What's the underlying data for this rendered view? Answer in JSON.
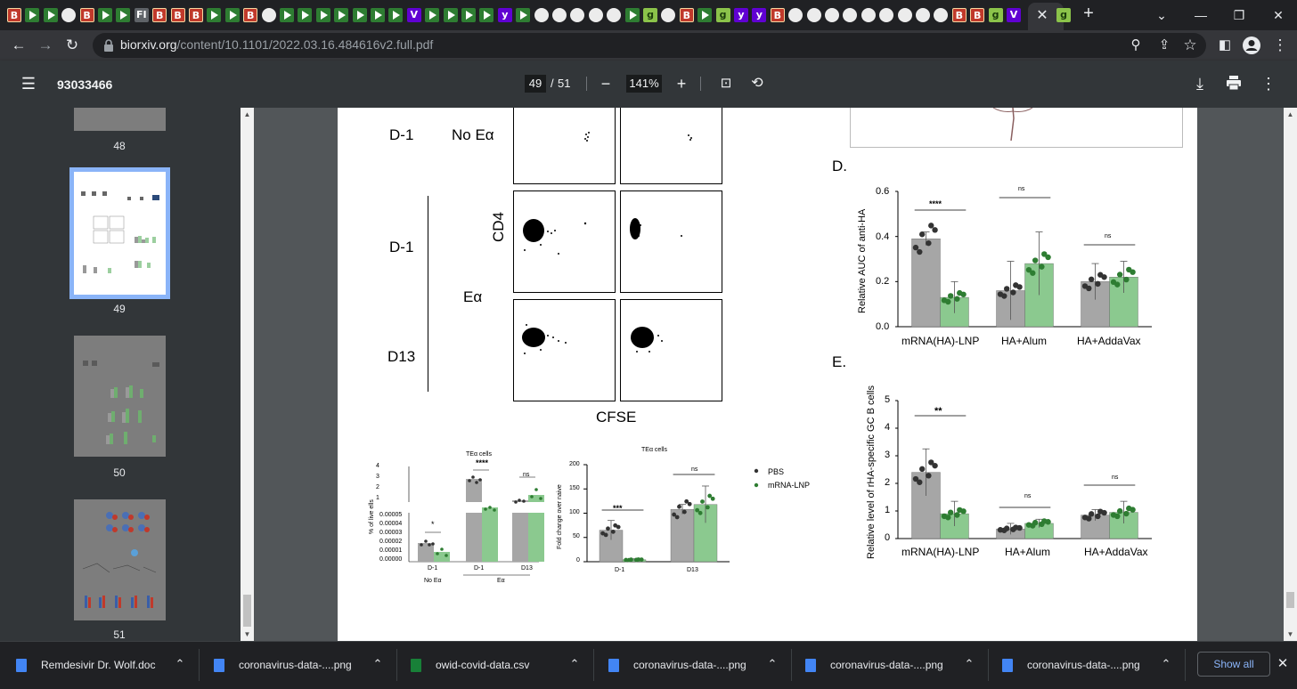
{
  "browser": {
    "url_host": "biorxiv.org",
    "url_path": "/content/10.1101/2022.03.16.484616v2.full.pdf",
    "tab_strip_glyphs": [
      "B",
      "D",
      "D",
      "C",
      "B",
      "D",
      "D",
      "FI",
      "B",
      "B",
      "B",
      "D",
      "D",
      "B",
      "C",
      "D",
      "D",
      "D",
      "D",
      "D",
      "D",
      "D",
      "V",
      "D",
      "D",
      "D",
      "D",
      "y",
      "D",
      "C",
      "C",
      "C",
      "C",
      "C",
      "D",
      "g",
      "C",
      "B",
      "D",
      "g",
      "y",
      "y",
      "B",
      "C",
      "C",
      "C",
      "C",
      "C",
      "C",
      "C",
      "C",
      "C",
      "B",
      "B",
      "g",
      "V"
    ],
    "tab_active_glyph": "g"
  },
  "pdf_viewer": {
    "title": "93033466",
    "current_page": "49",
    "page_separator": "/",
    "total_pages": "51",
    "zoom": "141%"
  },
  "sidebar": {
    "thumbs": [
      {
        "label": "48"
      },
      {
        "label": "49",
        "selected": true
      },
      {
        "label": "50"
      },
      {
        "label": "51"
      }
    ]
  },
  "figure": {
    "flow": {
      "row_labels": [
        "D-1",
        "D-1",
        "D13"
      ],
      "cond_labels": [
        "No Eα",
        "Eα"
      ],
      "y_axis": "CD4",
      "x_axis": "CFSE"
    },
    "chart_small_left": {
      "title": "TEα  cells",
      "ylabel": "% of live ells",
      "yticks_top": [
        "4",
        "3",
        "2",
        "1"
      ],
      "yticks_bottom": [
        "0.00005",
        "0.00004",
        "0.00003",
        "0.00002",
        "0.00001",
        "0.00000"
      ],
      "categories": [
        "D-1",
        "D-1",
        "D13"
      ],
      "sublabels": [
        "No Eα",
        "Eα"
      ],
      "sig": [
        "*",
        "****",
        "ns"
      ]
    },
    "chart_small_right": {
      "title": "TEα  cells",
      "ylabel": "Fold change over naive",
      "yticks": [
        "200",
        "150",
        "100",
        "50",
        "0"
      ],
      "categories": [
        "D-1",
        "D13"
      ],
      "sig": [
        "***",
        "ns"
      ]
    },
    "legend": [
      {
        "label": "PBS",
        "color": "#333333"
      },
      {
        "label": "mRNA-LNP",
        "color": "#2e7d32"
      }
    ],
    "panel_D": {
      "letter": "D.",
      "ylabel": "Relative AUC of anti-HA",
      "yticks": [
        "0.6",
        "0.4",
        "0.2",
        "0.0"
      ],
      "categories": [
        "mRNA(HA)-LNP",
        "HA+Alum",
        "HA+AddaVax"
      ],
      "sig": [
        "****",
        "ns",
        "ns"
      ]
    },
    "panel_E": {
      "letter": "E.",
      "ylabel": "Relative level of rHA-specific GC B cells",
      "yticks": [
        "5",
        "4",
        "3",
        "2",
        "1",
        "0"
      ],
      "categories": [
        "mRNA(HA)-LNP",
        "HA+Alum",
        "HA+AddaVax"
      ],
      "sig": [
        "**",
        "ns",
        "ns"
      ]
    }
  },
  "chart_data": [
    {
      "type": "bar",
      "ylabel": "Relative AUC of anti-HA",
      "categories": [
        "mRNA(HA)-LNP",
        "HA+Alum",
        "HA+AddaVax"
      ],
      "series": [
        {
          "name": "PBS",
          "values": [
            0.39,
            0.16,
            0.2
          ],
          "err": [
            0.03,
            0.13,
            0.08
          ]
        },
        {
          "name": "mRNA-LNP",
          "values": [
            0.13,
            0.28,
            0.22
          ],
          "err": [
            0.07,
            0.14,
            0.07
          ]
        }
      ],
      "ylim": [
        0,
        0.6
      ]
    },
    {
      "type": "bar",
      "ylabel": "Relative level of rHA-specific GC B cells",
      "categories": [
        "mRNA(HA)-LNP",
        "HA+Alum",
        "HA+AddaVax"
      ],
      "series": [
        {
          "name": "PBS",
          "values": [
            2.4,
            0.35,
            0.85
          ],
          "err": [
            0.85,
            0.2,
            0.2
          ]
        },
        {
          "name": "mRNA-LNP",
          "values": [
            0.9,
            0.55,
            0.95
          ],
          "err": [
            0.45,
            0.15,
            0.4
          ]
        }
      ],
      "ylim": [
        0,
        5
      ]
    },
    {
      "type": "bar",
      "title": "TEα  cells",
      "ylabel": "Fold change over naive",
      "categories": [
        "D-1",
        "D13"
      ],
      "series": [
        {
          "name": "PBS",
          "values": [
            65,
            108
          ],
          "err": [
            20,
            10
          ]
        },
        {
          "name": "mRNA-LNP",
          "values": [
            4,
            118
          ],
          "err": [
            2,
            38
          ]
        }
      ],
      "ylim": [
        0,
        200
      ]
    }
  ],
  "downloads": [
    {
      "name": "Remdesivir Dr. Wolf.doc",
      "icon_color": "#4285f4"
    },
    {
      "name": "coronavirus-data-....png",
      "icon_color": "#4285f4"
    },
    {
      "name": "owid-covid-data.csv",
      "icon_color": "#188038"
    },
    {
      "name": "coronavirus-data-....png",
      "icon_color": "#4285f4"
    },
    {
      "name": "coronavirus-data-....png",
      "icon_color": "#4285f4"
    },
    {
      "name": "coronavirus-data-....png",
      "icon_color": "#4285f4"
    }
  ],
  "show_all_label": "Show all",
  "colors": {
    "pbs_bar": "#a6a6a6",
    "lnp_bar": "#8bc98f",
    "lnp_dot": "#2e7d32",
    "pbs_dot": "#333333"
  }
}
